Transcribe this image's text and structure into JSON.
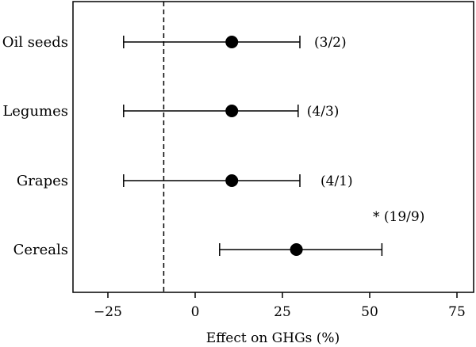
{
  "chart_data": {
    "type": "scatter",
    "subtype": "forest-plot",
    "title": "",
    "xlabel": "Effect on GHGs (%)",
    "ylabel": "",
    "xlim": [
      -35,
      80
    ],
    "xticks": [
      -25,
      0,
      25,
      50,
      75
    ],
    "xtick_labels": [
      "−25",
      "0",
      "25",
      "50",
      "75"
    ],
    "reference_line": {
      "x": -9,
      "style": "dashed"
    },
    "grid": false,
    "legend": "none",
    "colors": {
      "marker": "#000000",
      "line": "#000000",
      "frame": "#000000"
    },
    "categories": [
      "Oil seeds",
      "Legumes",
      "Grapes",
      "Cereals"
    ],
    "points": [
      {
        "category": "Oil seeds",
        "estimate": 10.5,
        "ci_low": -20.5,
        "ci_high": 30,
        "annotation": "(3/2)"
      },
      {
        "category": "Legumes",
        "estimate": 10.5,
        "ci_low": -20.5,
        "ci_high": 29.5,
        "annotation": "(4/3)"
      },
      {
        "category": "Grapes",
        "estimate": 10.5,
        "ci_low": -20.5,
        "ci_high": 30,
        "annotation": "(4/1)"
      },
      {
        "category": "Cereals",
        "estimate": 29,
        "ci_low": 7,
        "ci_high": 53.5,
        "annotation": "* (19/9)"
      }
    ]
  }
}
